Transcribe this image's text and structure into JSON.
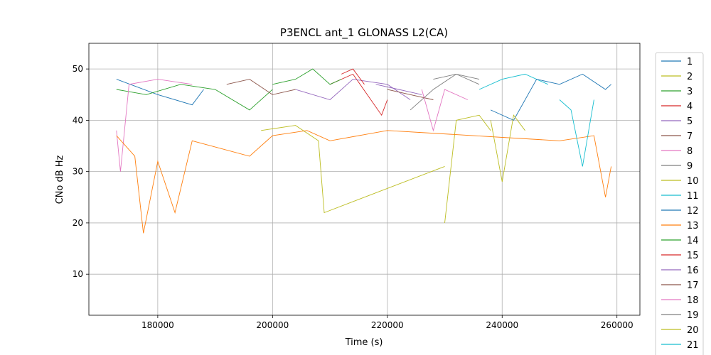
{
  "chart_data": {
    "type": "line",
    "title": "P3ENCL ant_1 GLONASS L2(CA)",
    "xlabel": "Time (s)",
    "ylabel": "CNo dB Hz",
    "xlim": [
      168000,
      264000
    ],
    "ylim": [
      2,
      55
    ],
    "xticks": [
      180000,
      200000,
      220000,
      240000,
      260000
    ],
    "yticks": [
      10,
      20,
      30,
      40,
      50
    ],
    "grid": true,
    "legend_position": "outside-right",
    "series": [
      {
        "name": "1",
        "color": "#1f77b4",
        "points": [
          [
            172800,
            48
          ],
          [
            180000,
            45
          ],
          [
            186000,
            43
          ],
          [
            188000,
            46
          ]
        ]
      },
      {
        "name": "2",
        "color": "#bcbd22",
        "points": [
          [
            198000,
            38
          ],
          [
            204000,
            39
          ],
          [
            208000,
            36
          ],
          [
            209000,
            22
          ],
          [
            230000,
            31
          ]
        ]
      },
      {
        "name": "3",
        "color": "#2ca02c",
        "points": [
          [
            172800,
            46
          ],
          [
            178000,
            45
          ],
          [
            184000,
            47
          ],
          [
            190000,
            46
          ],
          [
            196000,
            42
          ],
          [
            200000,
            46
          ]
        ]
      },
      {
        "name": "4",
        "color": "#d62728",
        "points": [
          [
            210000,
            47
          ],
          [
            214000,
            49
          ],
          [
            219000,
            41
          ],
          [
            220000,
            44
          ]
        ]
      },
      {
        "name": "5",
        "color": "#9467bd",
        "points": [
          [
            204000,
            46
          ],
          [
            210000,
            44
          ],
          [
            214000,
            48
          ],
          [
            220000,
            47
          ],
          [
            224000,
            44
          ]
        ]
      },
      {
        "name": "7",
        "color": "#8c564b",
        "points": [
          [
            192000,
            47
          ],
          [
            196000,
            48
          ],
          [
            200000,
            45
          ],
          [
            204000,
            46
          ]
        ]
      },
      {
        "name": "8",
        "color": "#e377c2",
        "points": [
          [
            172800,
            38
          ],
          [
            173500,
            30
          ],
          [
            175000,
            47
          ],
          [
            180000,
            48
          ],
          [
            186000,
            47
          ]
        ]
      },
      {
        "name": "9",
        "color": "#7f7f7f",
        "points": [
          [
            224000,
            42
          ],
          [
            228000,
            46
          ],
          [
            232000,
            49
          ],
          [
            236000,
            47
          ]
        ]
      },
      {
        "name": "10",
        "color": "#bcbd22",
        "points": [
          [
            230000,
            20
          ],
          [
            232000,
            40
          ],
          [
            236000,
            41
          ],
          [
            238000,
            38
          ]
        ]
      },
      {
        "name": "11",
        "color": "#17becf",
        "points": [
          [
            236000,
            46
          ],
          [
            240000,
            48
          ],
          [
            244000,
            49
          ],
          [
            248000,
            47
          ]
        ]
      },
      {
        "name": "12",
        "color": "#1f77b4",
        "points": [
          [
            238000,
            42
          ],
          [
            242000,
            40
          ],
          [
            246000,
            48
          ],
          [
            250000,
            47
          ],
          [
            254000,
            49
          ],
          [
            258000,
            46
          ],
          [
            259000,
            47
          ]
        ]
      },
      {
        "name": "13",
        "color": "#ff7f0e",
        "points": [
          [
            172800,
            37
          ],
          [
            176000,
            33
          ],
          [
            177500,
            18
          ],
          [
            180000,
            32
          ],
          [
            183000,
            22
          ],
          [
            186000,
            36
          ],
          [
            196000,
            33
          ],
          [
            200000,
            37
          ],
          [
            206000,
            38
          ],
          [
            210000,
            36
          ],
          [
            220000,
            38
          ],
          [
            250000,
            36
          ],
          [
            256000,
            37
          ],
          [
            258000,
            25
          ],
          [
            259000,
            31
          ]
        ]
      },
      {
        "name": "14",
        "color": "#2ca02c",
        "points": [
          [
            200000,
            47
          ],
          [
            204000,
            48
          ],
          [
            207000,
            50
          ],
          [
            210000,
            47
          ],
          [
            212000,
            48
          ]
        ]
      },
      {
        "name": "15",
        "color": "#d62728",
        "points": [
          [
            212000,
            49
          ],
          [
            214000,
            50
          ],
          [
            216000,
            47
          ]
        ]
      },
      {
        "name": "16",
        "color": "#9467bd",
        "points": [
          [
            218000,
            47
          ],
          [
            222000,
            46
          ],
          [
            226000,
            45
          ]
        ]
      },
      {
        "name": "17",
        "color": "#8c564b",
        "points": [
          [
            220000,
            46
          ],
          [
            224000,
            45
          ],
          [
            228000,
            44
          ]
        ]
      },
      {
        "name": "18",
        "color": "#e377c2",
        "points": [
          [
            226000,
            46
          ],
          [
            228000,
            38
          ],
          [
            230000,
            46
          ],
          [
            234000,
            44
          ]
        ]
      },
      {
        "name": "19",
        "color": "#7f7f7f",
        "points": [
          [
            228000,
            48
          ],
          [
            232000,
            49
          ],
          [
            236000,
            48
          ]
        ]
      },
      {
        "name": "20",
        "color": "#bcbd22",
        "points": [
          [
            238000,
            40
          ],
          [
            240000,
            28
          ],
          [
            242000,
            41
          ],
          [
            244000,
            38
          ]
        ]
      },
      {
        "name": "21",
        "color": "#17becf",
        "points": [
          [
            250000,
            44
          ],
          [
            252000,
            42
          ],
          [
            254000,
            31
          ],
          [
            256000,
            44
          ]
        ]
      }
    ]
  }
}
